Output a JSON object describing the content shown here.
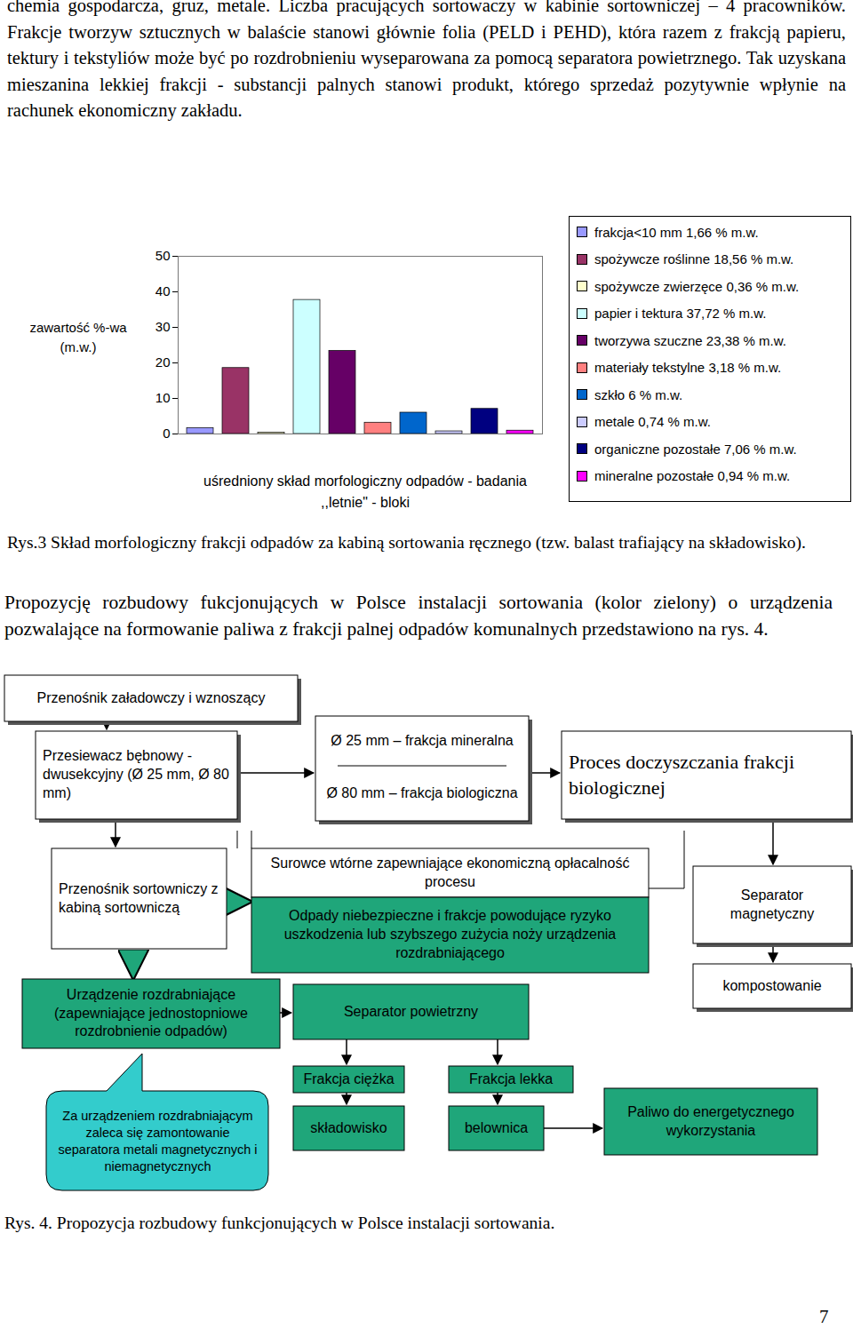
{
  "top_text": "chemia gospodarcza, gruz, metale. Liczba pracujących sortowaczy w kabinie sortowniczej – 4 pracowników. Frakcje tworzyw sztucznych w balaście stanowi głównie folia (PELD i PEHD), która razem z frakcją papieru, tektury i tekstyliów może być po rozdrobnieniu wyseparowana za pomocą separatora powietrznego. Tak uzyskana mieszanina lekkiej frakcji - substancji palnych stanowi produkt, którego sprzedaż pozytywnie wpłynie na rachunek ekonomiczny zakładu.",
  "chart_data": {
    "type": "bar",
    "ylabel": "zawartość %-wa (m.w.)",
    "xlabel": "uśredniony skład morfologiczny odpadów - badania ,,letnie\" - bloki",
    "ylim": [
      0,
      50
    ],
    "yticks": [
      0,
      10,
      20,
      30,
      40,
      50
    ],
    "grid": false,
    "legend": "right",
    "series": [
      {
        "name": "frakcja<10 mm 1,66 % m.w.",
        "color": "#9999ff",
        "values": [
          1.66
        ]
      },
      {
        "name": "spożywcze roślinne 18,56 % m.w.",
        "color": "#993366",
        "values": [
          18.56
        ]
      },
      {
        "name": "spożywcze zwierzęce 0,36 % m.w.",
        "color": "#ffffcc",
        "values": [
          0.36
        ]
      },
      {
        "name": "papier i tektura 37,72 % m.w.",
        "color": "#ccffff",
        "values": [
          37.72
        ]
      },
      {
        "name": "tworzywa szuczne 23,38 % m.w.",
        "color": "#660066",
        "values": [
          23.38
        ]
      },
      {
        "name": "materiały tekstylne 3,18 % m.w.",
        "color": "#ff8080",
        "values": [
          3.18
        ]
      },
      {
        "name": "szkło 6 % m.w.",
        "color": "#0066cc",
        "values": [
          6
        ]
      },
      {
        "name": "metale 0,74 % m.w.",
        "color": "#ccccff",
        "values": [
          0.74
        ]
      },
      {
        "name": "organiczne pozostałe 7,06 % m.w.",
        "color": "#000080",
        "values": [
          7.06
        ]
      },
      {
        "name": "mineralne pozostałe 0,94 % m.w.",
        "color": "#ff00ff",
        "values": [
          0.94
        ]
      }
    ]
  },
  "figure3_caption": "Rys.3 Skład morfologiczny frakcji odpadów za kabiną sortowania ręcznego (tzw. balast trafiający na składowisko).",
  "paragraph": "Propozycję rozbudowy fukcjonujących w Polsce instalacji sortowania (kolor zielony) o urządzenia pozwalające na formowanie paliwa z frakcji palnej odpadów komunalnych przedstawiono na rys. 4.",
  "diagram": {
    "nodes": [
      {
        "label": "Przenośnik załadowczy i wznoszący"
      },
      {
        "label": "Przesiewacz bębnowy - dwusekcyjny (Ø 25 mm, Ø 80 mm)"
      },
      {
        "label": "Ø 25 mm – frakcja mineralna"
      },
      {
        "label": "Ø 80 mm – frakcja biologiczna"
      },
      {
        "label": "Proces doczyszczania frakcji biologicznej"
      },
      {
        "label": "Przenośnik sortowniczy z kabiną sortowniczą"
      },
      {
        "label": "Surowce wtórne zapewniające ekonomiczną opłacalność procesu"
      },
      {
        "label": "Odpady niebezpieczne i frakcje powodujące ryzyko uszkodzenia lub szybszego zużycia noży urządzenia rozdrabniającego"
      },
      {
        "label": "Separator magnetyczny"
      },
      {
        "label": "kompostowanie"
      },
      {
        "label": "Urządzenie rozdrabniające (zapewniające jednostopniowe rozdrobnienie odpadów)"
      },
      {
        "label": "Separator powietrzny"
      },
      {
        "label": "Frakcja ciężka"
      },
      {
        "label": "Frakcja lekka"
      },
      {
        "label": "składowisko"
      },
      {
        "label": "belownica"
      },
      {
        "label": "Paliwo do energetycznego wykorzystania"
      },
      {
        "label": "Za urządzeniem rozdrabniającym zaleca się zamontowanie separatora metali magnetycznych i niemagnetycznych"
      }
    ]
  },
  "figure4_caption": "Rys. 4. Propozycja rozbudowy funkcjonujących w Polsce instalacji sortowania.",
  "page_number": 7
}
